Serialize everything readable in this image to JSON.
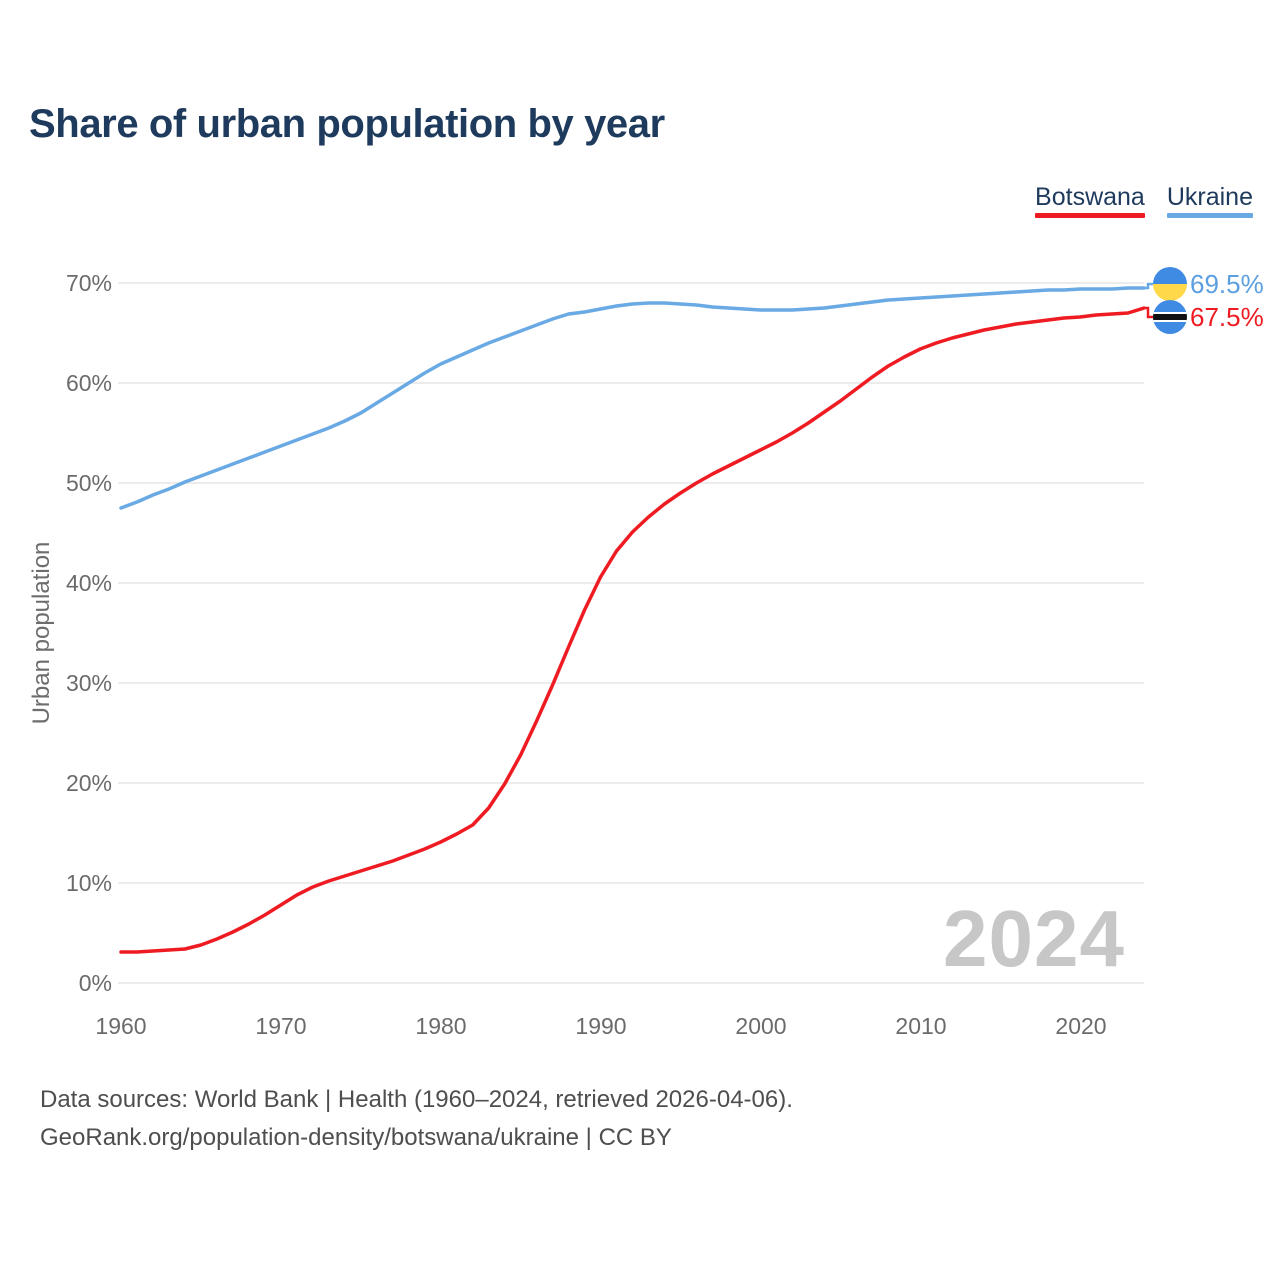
{
  "title": "Share of urban population by year",
  "legend": {
    "items": [
      {
        "label": "Botswana",
        "color": "#ee1c22"
      },
      {
        "label": "Ukraine",
        "color": "#69a9e4"
      }
    ]
  },
  "y_axis": {
    "title": "Urban population",
    "ticks": [
      "70%",
      "60%",
      "50%",
      "40%",
      "30%",
      "20%",
      "10%",
      "0%"
    ]
  },
  "x_axis": {
    "ticks": [
      "1960",
      "1970",
      "1980",
      "1990",
      "2000",
      "2010",
      "2020"
    ]
  },
  "watermark": "2024",
  "end_labels": {
    "ukraine": {
      "series": "Ukraine",
      "value": "69.5%",
      "color": "#5b9fe0",
      "flag_icon": "ukraine-flag"
    },
    "botswana": {
      "series": "Botswana",
      "value": "67.5%",
      "color": "#ee1c22",
      "flag_icon": "botswana-flag"
    }
  },
  "footer": {
    "line1": "Data sources: World Bank | Health (1960–2024, retrieved 2026-04-06).",
    "line2": "GeoRank.org/population-density/botswana/ukraine | CC BY"
  },
  "chart_data": {
    "type": "line",
    "title": "Share of urban population by year",
    "xlabel": "",
    "ylabel": "Urban population",
    "x_range": [
      1960,
      2024
    ],
    "ylim": [
      0,
      70
    ],
    "y_grid_step": 10,
    "grid": "horizontal",
    "legend_position": "top-right",
    "x": [
      1960,
      1961,
      1962,
      1963,
      1964,
      1965,
      1966,
      1967,
      1968,
      1969,
      1970,
      1971,
      1972,
      1973,
      1974,
      1975,
      1976,
      1977,
      1978,
      1979,
      1980,
      1981,
      1982,
      1983,
      1984,
      1985,
      1986,
      1987,
      1988,
      1989,
      1990,
      1991,
      1992,
      1993,
      1994,
      1995,
      1996,
      1997,
      1998,
      1999,
      2000,
      2001,
      2002,
      2003,
      2004,
      2005,
      2006,
      2007,
      2008,
      2009,
      2010,
      2011,
      2012,
      2013,
      2014,
      2015,
      2016,
      2017,
      2018,
      2019,
      2020,
      2021,
      2022,
      2023,
      2024
    ],
    "series": [
      {
        "name": "Botswana",
        "color": "#ee1c22",
        "end_value": 67.5,
        "values": [
          3.1,
          3.1,
          3.2,
          3.3,
          3.4,
          3.8,
          4.4,
          5.1,
          5.9,
          6.8,
          7.8,
          8.8,
          9.6,
          10.2,
          10.7,
          11.2,
          11.7,
          12.2,
          12.8,
          13.4,
          14.1,
          14.9,
          15.8,
          17.5,
          19.9,
          22.8,
          26.2,
          29.8,
          33.6,
          37.3,
          40.6,
          43.2,
          45.1,
          46.6,
          47.9,
          49.0,
          50.0,
          50.9,
          51.7,
          52.5,
          53.3,
          54.1,
          55.0,
          56.0,
          57.1,
          58.2,
          59.4,
          60.6,
          61.7,
          62.6,
          63.4,
          64.0,
          64.5,
          64.9,
          65.3,
          65.6,
          65.9,
          66.1,
          66.3,
          66.5,
          66.6,
          66.8,
          66.9,
          67.0,
          67.5
        ]
      },
      {
        "name": "Ukraine",
        "color": "#69a9e4",
        "end_value": 69.5,
        "values": [
          47.5,
          48.1,
          48.8,
          49.4,
          50.1,
          50.7,
          51.3,
          51.9,
          52.5,
          53.1,
          53.7,
          54.3,
          54.9,
          55.5,
          56.2,
          57.0,
          58.0,
          59.0,
          60.0,
          61.0,
          61.9,
          62.6,
          63.3,
          64.0,
          64.6,
          65.2,
          65.8,
          66.4,
          66.9,
          67.1,
          67.4,
          67.7,
          67.9,
          68.0,
          68.0,
          67.9,
          67.8,
          67.6,
          67.5,
          67.4,
          67.3,
          67.3,
          67.3,
          67.4,
          67.5,
          67.7,
          67.9,
          68.1,
          68.3,
          68.4,
          68.5,
          68.6,
          68.7,
          68.8,
          68.9,
          69.0,
          69.1,
          69.2,
          69.3,
          69.3,
          69.4,
          69.4,
          69.4,
          69.5,
          69.5
        ]
      }
    ]
  }
}
